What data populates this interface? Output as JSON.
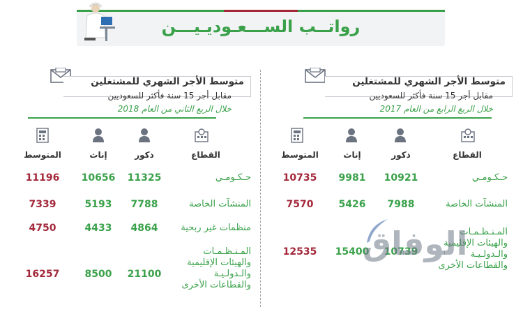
{
  "title": "رواتــب الســـعـوديـيـــن",
  "watermark": "الوفاق",
  "colors": {
    "green": "#3aa14a",
    "red": "#a3283a",
    "gray": "#f2f3f5"
  },
  "icons": {
    "envelope": "envelope-icon",
    "person": "person-icon",
    "sector": "building-map-icon",
    "table": "calculator-icon"
  },
  "panels": [
    {
      "header": {
        "title": "متوسط الأجر الشهري للمشتغلين",
        "subtitle": "مقابل أجر 15 سنة فأكثر للسعوديين",
        "period": "خلال الربع الرابع من العام 2017"
      },
      "columns": {
        "sector": "القطاع",
        "male": "ذكور",
        "female": "إناث",
        "avg": "المتوسط"
      },
      "rows": [
        {
          "sector": "حـكـومـي",
          "male": "10921",
          "female": "9981",
          "avg": "10735"
        },
        {
          "sector": "المنشآت الخاصة",
          "male": "7988",
          "female": "5426",
          "avg": "7570"
        },
        {
          "sector": "المـنـظـمـات والهيئات الإقليمية والـدولـيـة والقطاعات الأخرى",
          "male": "10739",
          "female": "15400",
          "avg": "12535"
        }
      ]
    },
    {
      "header": {
        "title": "متوسط الأجر الشهري للمشتغلين",
        "subtitle": "مقابل أجر 15 سنة فأكثر للسعوديين",
        "period": "خلال الربع الثاني من العام 2018"
      },
      "columns": {
        "sector": "القطاع",
        "male": "ذكور",
        "female": "إناث",
        "avg": "المتوسط"
      },
      "rows": [
        {
          "sector": "حـكـومـي",
          "male": "11325",
          "female": "10656",
          "avg": "11196"
        },
        {
          "sector": "المنشآت الخاصة",
          "male": "7788",
          "female": "5193",
          "avg": "7339"
        },
        {
          "sector": "منظمات غير ربحية",
          "male": "4864",
          "female": "4433",
          "avg": "4750"
        },
        {
          "sector": "المـنـظـمـات والهيئات الإقليمية والـدولـيـة والقطاعات الأخرى",
          "male": "21100",
          "female": "8500",
          "avg": "16257"
        }
      ]
    }
  ]
}
